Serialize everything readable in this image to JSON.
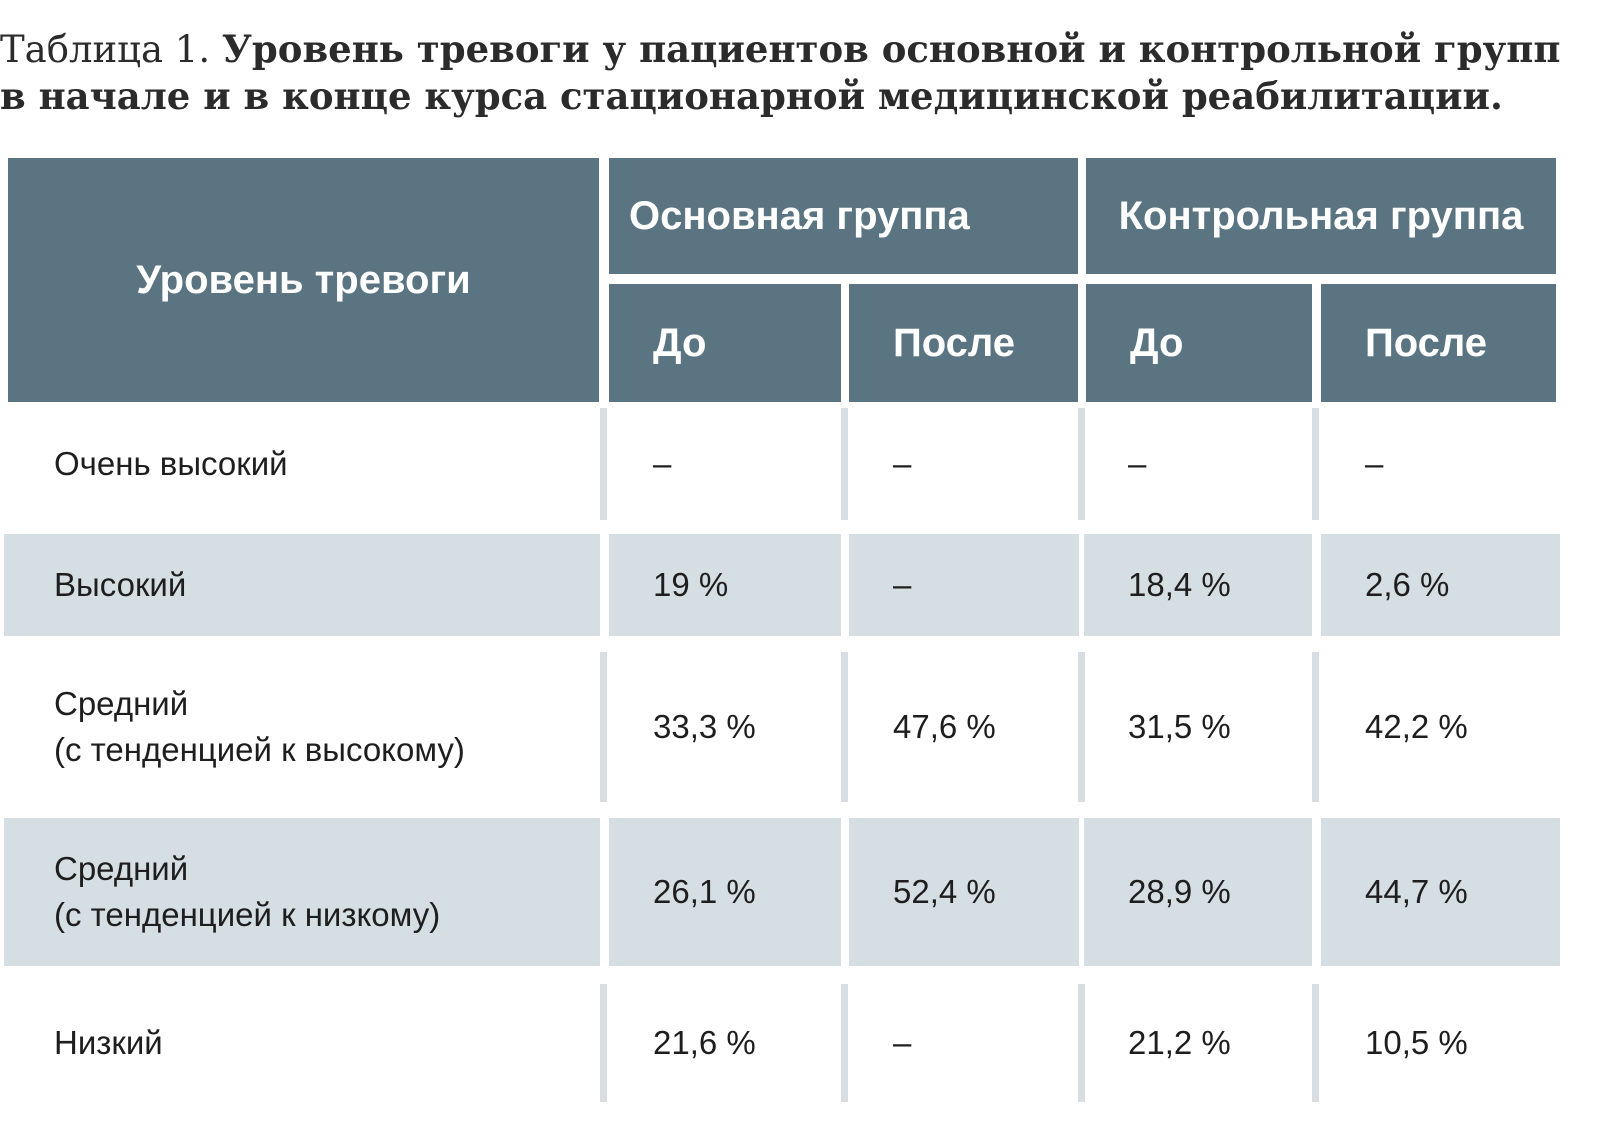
{
  "caption": {
    "prefix": "Таблица 1.",
    "title": "Уровень тревоги у пациентов основной и контрольной групп в начале и в конце курса стационарной медицинской реабилитации."
  },
  "header": {
    "level": "Уровень тревоги",
    "main_group": "Основная группа",
    "control_group": "Контрольная группа",
    "before": "До",
    "after": "После"
  },
  "colors": {
    "header_bg": "#5a7482",
    "row_shade": "#d5dee3",
    "divider": "#d7dde0"
  },
  "chart_data": {
    "type": "table",
    "title": "Уровень тревоги у пациентов основной и контрольной групп в начале и в конце курса стационарной медицинской реабилитации.",
    "columns": [
      "Уровень тревоги",
      "Основная группа — До",
      "Основная группа — После",
      "Контрольная группа — До",
      "Контрольная группа — После"
    ],
    "rows": [
      {
        "level": [
          "Очень высокий"
        ],
        "values": [
          "–",
          "–",
          "–",
          "–"
        ]
      },
      {
        "level": [
          "Высокий"
        ],
        "values": [
          "19 %",
          "–",
          "18,4 %",
          "2,6 %"
        ]
      },
      {
        "level": [
          "Средний",
          "(с тенденцией к высокому)"
        ],
        "values": [
          "33,3 %",
          "47,6 %",
          "31,5 %",
          "42,2 %"
        ]
      },
      {
        "level": [
          "Средний",
          "(с тенденцией к низкому)"
        ],
        "values": [
          "26,1 %",
          "52,4 %",
          "28,9 %",
          "44,7 %"
        ]
      },
      {
        "level": [
          "Низкий"
        ],
        "values": [
          "21,6 %",
          "–",
          "21,2 %",
          "10,5 %"
        ]
      }
    ]
  }
}
